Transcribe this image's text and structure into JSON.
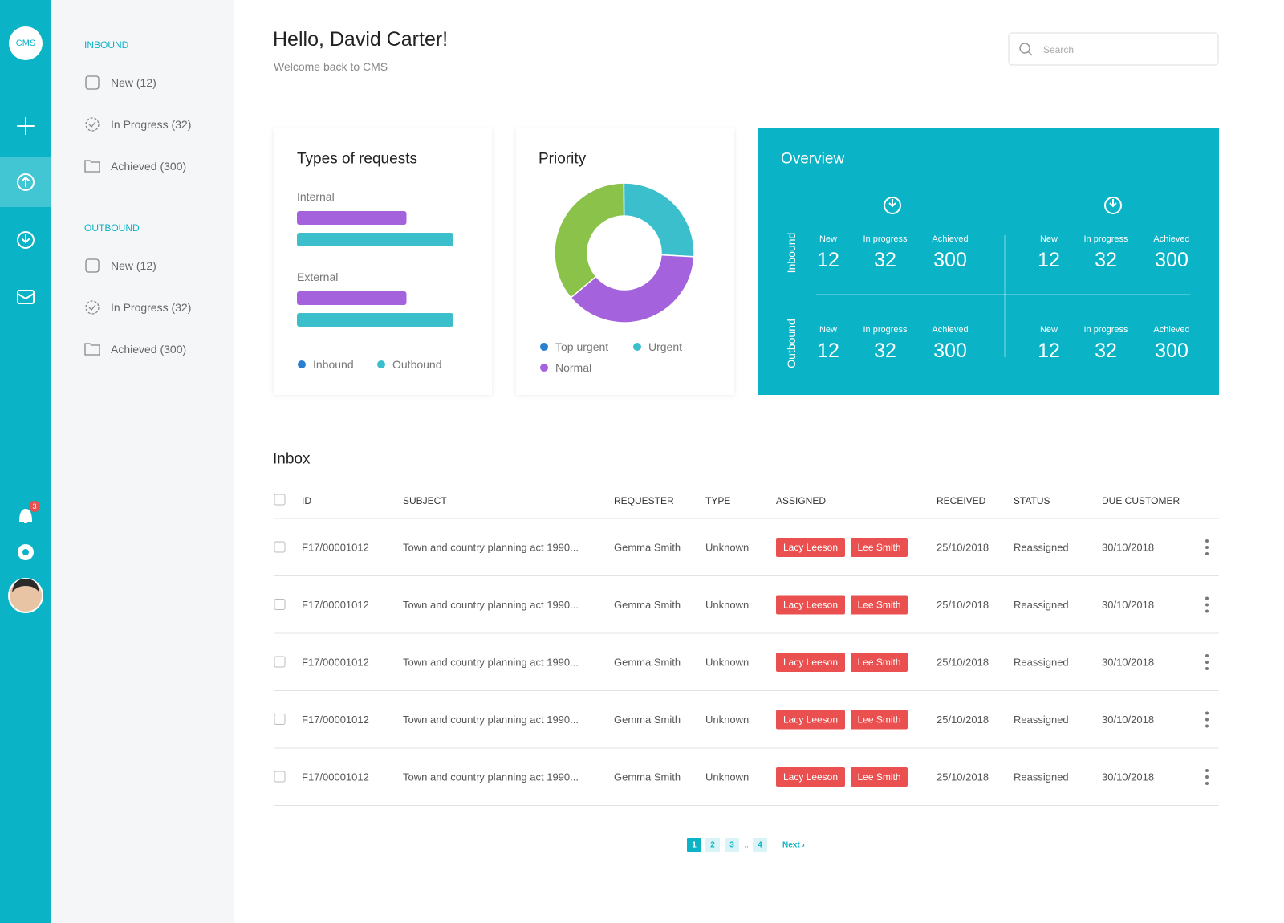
{
  "rail": {
    "logo": "CMS",
    "badge": "3"
  },
  "sidebar": {
    "sections": [
      {
        "title": "INBOUND",
        "items": [
          "New (12)",
          "In Progress (32)",
          "Achieved (300)"
        ]
      },
      {
        "title": "OUTBOUND",
        "items": [
          "New (12)",
          "In Progress (32)",
          "Achieved (300)"
        ]
      }
    ]
  },
  "header": {
    "greeting": "Hello, David Carter!",
    "subtitle": "Welcome back to CMS",
    "search_placeholder": "Search"
  },
  "chart_data": [
    {
      "type": "bar",
      "orientation": "horizontal",
      "title": "Types of requests",
      "categories": [
        "Internal",
        "External"
      ],
      "series": [
        {
          "name": "Inbound",
          "color": "#a463dc",
          "legend_color": "#2b7fd0",
          "values": [
            70,
            70
          ]
        },
        {
          "name": "Outbound",
          "color": "#3bbfcc",
          "legend_color": "#3bbfcc",
          "values": [
            100,
            100
          ]
        }
      ],
      "xlim": [
        0,
        100
      ]
    },
    {
      "type": "pie",
      "donut": true,
      "title": "Priority",
      "categories": [
        "Top urgent",
        "Urgent",
        "Normal"
      ],
      "values": [
        36,
        26,
        38
      ],
      "colors": [
        "#8bc34a",
        "#3bbfcc",
        "#a463dc"
      ],
      "legend_colors": [
        "#2b7fd0",
        "#3bbfcc",
        "#a463dc"
      ]
    }
  ],
  "overview": {
    "title": "Overview",
    "stat_labels": [
      "New",
      "In progress",
      "Achieved"
    ],
    "rows": [
      {
        "label": "Inbound",
        "groups": [
          [
            12,
            32,
            300
          ],
          [
            12,
            32,
            300
          ]
        ]
      },
      {
        "label": "Outbound",
        "groups": [
          [
            12,
            32,
            300
          ],
          [
            12,
            32,
            300
          ]
        ]
      }
    ]
  },
  "inbox": {
    "title": "Inbox",
    "columns": [
      "ID",
      "SUBJECT",
      "REQUESTER",
      "TYPE",
      "ASSIGNED",
      "RECEIVED",
      "STATUS",
      "DUE CUSTOMER"
    ],
    "rows": [
      {
        "id": "F17/00001012",
        "subject": "Town and country planning act 1990...",
        "requester": "Gemma Smith",
        "type": "Unknown",
        "assigned": [
          "Lacy Leeson",
          "Lee Smith"
        ],
        "received": "25/10/2018",
        "status": "Reassigned",
        "due": "30/10/2018"
      },
      {
        "id": "F17/00001012",
        "subject": "Town and country planning act 1990...",
        "requester": "Gemma Smith",
        "type": "Unknown",
        "assigned": [
          "Lacy Leeson",
          "Lee Smith"
        ],
        "received": "25/10/2018",
        "status": "Reassigned",
        "due": "30/10/2018"
      },
      {
        "id": "F17/00001012",
        "subject": "Town and country planning act 1990...",
        "requester": "Gemma Smith",
        "type": "Unknown",
        "assigned": [
          "Lacy Leeson",
          "Lee Smith"
        ],
        "received": "25/10/2018",
        "status": "Reassigned",
        "due": "30/10/2018"
      },
      {
        "id": "F17/00001012",
        "subject": "Town and country planning act 1990...",
        "requester": "Gemma Smith",
        "type": "Unknown",
        "assigned": [
          "Lacy Leeson",
          "Lee Smith"
        ],
        "received": "25/10/2018",
        "status": "Reassigned",
        "due": "30/10/2018"
      },
      {
        "id": "F17/00001012",
        "subject": "Town and country planning act 1990...",
        "requester": "Gemma Smith",
        "type": "Unknown",
        "assigned": [
          "Lacy Leeson",
          "Lee Smith"
        ],
        "received": "25/10/2018",
        "status": "Reassigned",
        "due": "30/10/2018"
      }
    ]
  },
  "pagination": {
    "pages": [
      1,
      2,
      3,
      4
    ],
    "current": 1,
    "ellipsis": "..",
    "next": "Next ›"
  }
}
